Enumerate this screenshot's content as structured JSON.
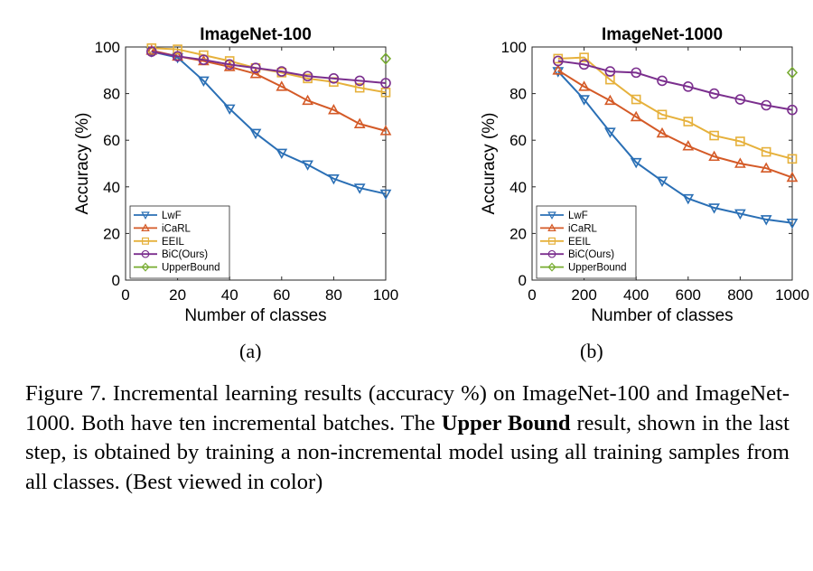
{
  "chart_data": [
    {
      "type": "line",
      "title": "ImageNet-100",
      "xlabel": "Number of classes",
      "ylabel": "Accuracy (%)",
      "xlim": [
        0,
        100
      ],
      "ylim": [
        0,
        100
      ],
      "xticks": [
        "0",
        "20",
        "40",
        "60",
        "80",
        "100"
      ],
      "yticks": [
        "0",
        "20",
        "40",
        "60",
        "80",
        "100"
      ],
      "grid": false,
      "legend_position": "bottom-left",
      "series": [
        {
          "name": "LwF",
          "color": "#2a6fb5",
          "marker": "triangle-down",
          "x": [
            10,
            20,
            30,
            40,
            50,
            60,
            70,
            80,
            90,
            100
          ],
          "y": [
            98,
            95.5,
            85.5,
            73.5,
            63,
            54.5,
            49.5,
            43.5,
            39.5,
            37
          ]
        },
        {
          "name": "iCaRL",
          "color": "#d45a27",
          "marker": "triangle-up",
          "x": [
            10,
            20,
            30,
            40,
            50,
            60,
            70,
            80,
            90,
            100
          ],
          "y": [
            98.5,
            96,
            94,
            91.5,
            88.5,
            83,
            77,
            73,
            67,
            64
          ]
        },
        {
          "name": "EEIL",
          "color": "#e6b13c",
          "marker": "square",
          "x": [
            10,
            20,
            30,
            40,
            50,
            60,
            70,
            80,
            90,
            100
          ],
          "y": [
            99.5,
            99,
            96.5,
            94,
            91,
            89,
            86.5,
            85,
            82.5,
            80.5
          ]
        },
        {
          "name": "BiC(Ours)",
          "color": "#7b2f8e",
          "marker": "circle",
          "x": [
            10,
            20,
            30,
            40,
            50,
            60,
            70,
            80,
            90,
            100
          ],
          "y": [
            98,
            96,
            94.5,
            92.5,
            91,
            89.5,
            87.5,
            86.5,
            85.5,
            84.5
          ]
        },
        {
          "name": "UpperBound",
          "color": "#77ac30",
          "marker": "diamond",
          "x": [
            100
          ],
          "y": [
            95
          ]
        }
      ]
    },
    {
      "type": "line",
      "title": "ImageNet-1000",
      "xlabel": "Number of classes",
      "ylabel": "Accuracy (%)",
      "xlim": [
        0,
        1000
      ],
      "ylim": [
        0,
        100
      ],
      "xticks": [
        "0",
        "200",
        "400",
        "600",
        "800",
        "1000"
      ],
      "yticks": [
        "0",
        "20",
        "40",
        "60",
        "80",
        "100"
      ],
      "grid": false,
      "legend_position": "bottom-left",
      "series": [
        {
          "name": "LwF",
          "color": "#2a6fb5",
          "marker": "triangle-down",
          "x": [
            100,
            200,
            300,
            400,
            500,
            600,
            700,
            800,
            900,
            1000
          ],
          "y": [
            89.5,
            77.5,
            63.5,
            50.5,
            42.5,
            35,
            31,
            28.5,
            26,
            24.5
          ]
        },
        {
          "name": "iCaRL",
          "color": "#d45a27",
          "marker": "triangle-up",
          "x": [
            100,
            200,
            300,
            400,
            500,
            600,
            700,
            800,
            900,
            1000
          ],
          "y": [
            90,
            83,
            77,
            70,
            63,
            57.5,
            53,
            50,
            48,
            44
          ]
        },
        {
          "name": "EEIL",
          "color": "#e6b13c",
          "marker": "square",
          "x": [
            100,
            200,
            300,
            400,
            500,
            600,
            700,
            800,
            900,
            1000
          ],
          "y": [
            95,
            95.5,
            86,
            77.5,
            71,
            68,
            62,
            59.5,
            55,
            52
          ]
        },
        {
          "name": "BiC(Ours)",
          "color": "#7b2f8e",
          "marker": "circle",
          "x": [
            100,
            200,
            300,
            400,
            500,
            600,
            700,
            800,
            900,
            1000
          ],
          "y": [
            94,
            92.5,
            89.5,
            89,
            85.5,
            83,
            80,
            77.5,
            75,
            73
          ]
        },
        {
          "name": "UpperBound",
          "color": "#77ac30",
          "marker": "diamond",
          "x": [
            1000
          ],
          "y": [
            89
          ]
        }
      ]
    }
  ],
  "subcaptions": [
    "(a)",
    "(b)"
  ],
  "caption": {
    "text_before": "Figure 7. Incremental learning results (accuracy %) on ImageNet-100 and ImageNet-1000. Both have ten incremental batches. The ",
    "bold": "Upper Bound",
    "text_after": " result, shown in the last step, is obtained by training a non-incremental model using all training samples from all classes. (Best viewed in color)"
  }
}
